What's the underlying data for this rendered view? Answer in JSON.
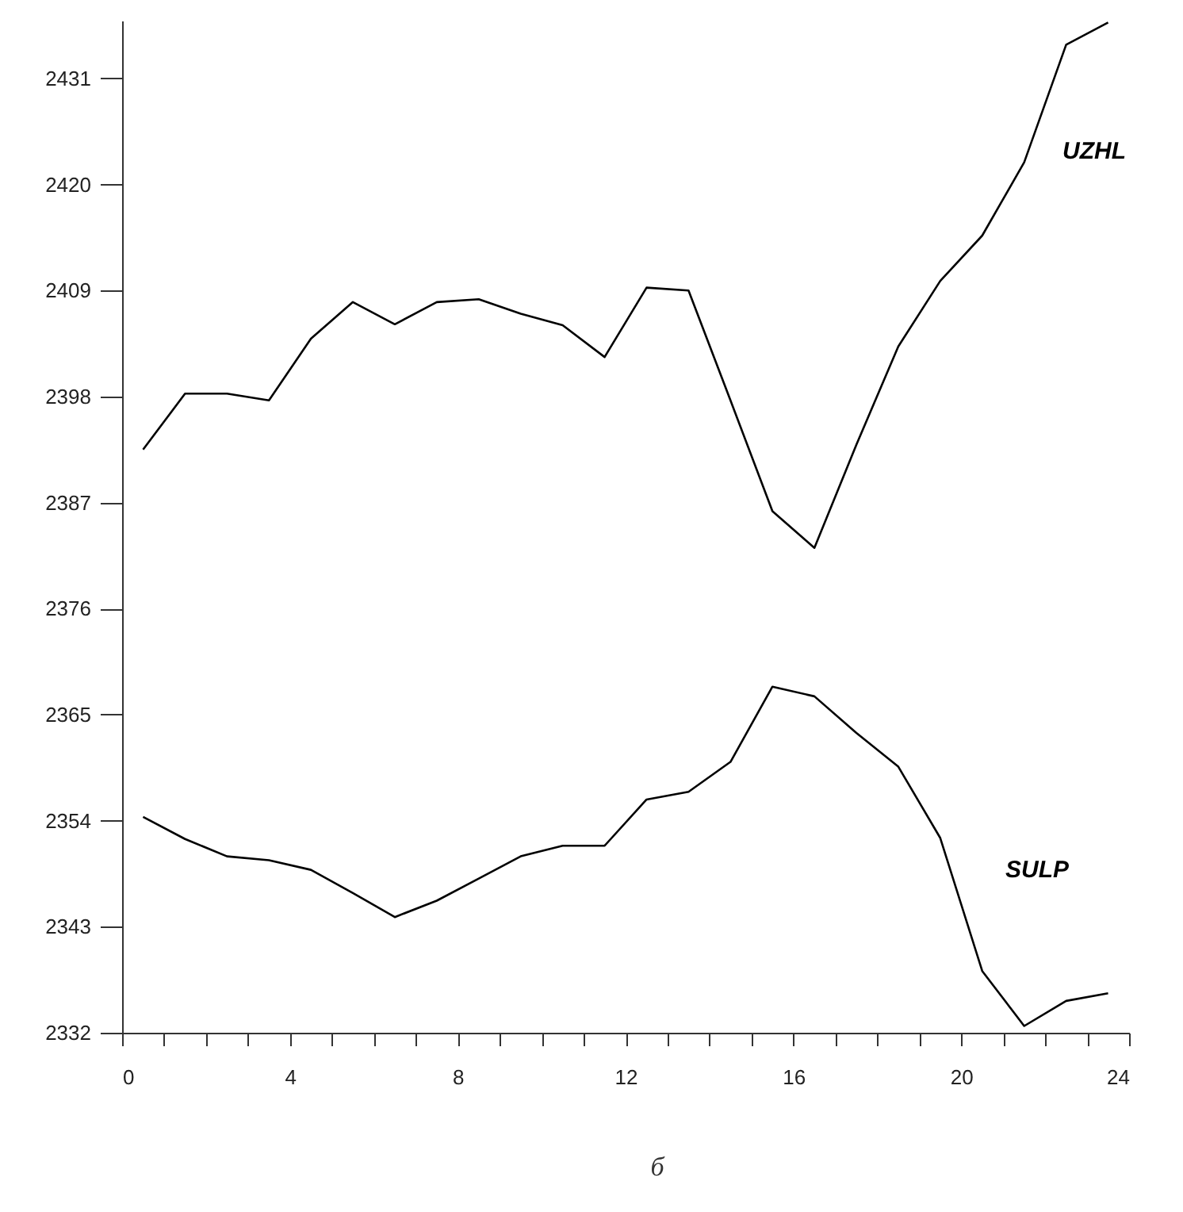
{
  "chart_data": {
    "type": "line",
    "x": [
      0.5,
      1.5,
      2.5,
      3.5,
      4.5,
      5.5,
      6.5,
      7.5,
      8.5,
      9.5,
      10.5,
      11.5,
      12.5,
      13.5,
      14.5,
      15.5,
      16.5,
      17.5,
      18.5,
      19.5,
      20.5,
      21.5,
      22.5,
      23.5
    ],
    "series": [
      {
        "name": "UZHL",
        "color": "#000000",
        "values": [
          2392.5,
          2398.3,
          2398.3,
          2397.6,
          2404.0,
          2407.8,
          2405.5,
          2407.8,
          2408.1,
          2406.6,
          2405.4,
          2402.1,
          2409.3,
          2409.0,
          2397.6,
          2386.1,
          2382.3,
          2393.0,
          2403.2,
          2410.0,
          2414.7,
          2422.3,
          2434.5,
          2436.8
        ]
      },
      {
        "name": "SULP",
        "color": "#000000",
        "values": [
          2354.4,
          2352.1,
          2350.3,
          2349.9,
          2348.9,
          2346.5,
          2344.0,
          2345.7,
          2348.0,
          2350.3,
          2351.4,
          2351.4,
          2356.2,
          2357.0,
          2360.1,
          2367.9,
          2366.9,
          2363.1,
          2359.6,
          2352.2,
          2338.4,
          2332.7,
          2335.3,
          2336.1
        ]
      }
    ],
    "xlim": [
      0,
      24
    ],
    "xticks": [
      0,
      {
        "value": 1,
        "label": null
      },
      {
        "value": 2,
        "label": null
      },
      {
        "value": 3,
        "label": null
      },
      4,
      {
        "value": 5,
        "label": null
      },
      {
        "value": 6,
        "label": null
      },
      {
        "value": 7,
        "label": null
      },
      8,
      {
        "value": 9,
        "label": null
      },
      {
        "value": 10,
        "label": null
      },
      {
        "value": 11,
        "label": null
      },
      12,
      {
        "value": 13,
        "label": null
      },
      {
        "value": 14,
        "label": null
      },
      {
        "value": 15,
        "label": null
      },
      16,
      {
        "value": 17,
        "label": null
      },
      {
        "value": 18,
        "label": null
      },
      {
        "value": 19,
        "label": null
      },
      20,
      {
        "value": 21,
        "label": null
      },
      {
        "value": 22,
        "label": null
      },
      {
        "value": 23,
        "label": null
      },
      24
    ],
    "ylim": [
      2332,
      2437
    ],
    "yticks": [
      2332,
      2343,
      2354,
      2365,
      2376,
      2387,
      2398,
      2409,
      2420,
      2431
    ],
    "grid": false,
    "legend": false,
    "marker": "none",
    "line_style": "solid",
    "annotations": [
      "б"
    ]
  }
}
